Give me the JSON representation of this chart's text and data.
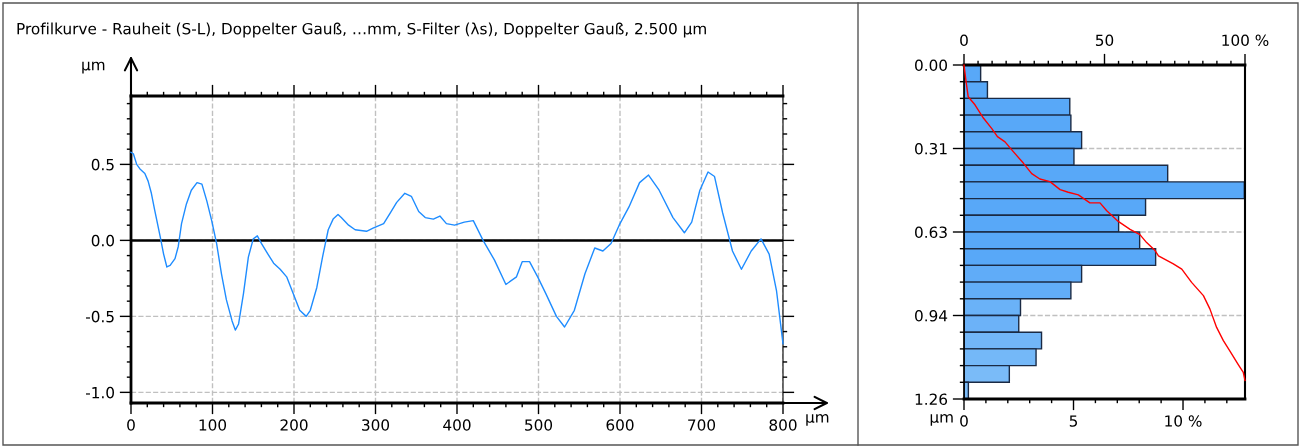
{
  "chart_data": [
    {
      "type": "line",
      "title": "Profilkurve - Rauheit (S-L), Doppelter Gauß, …mm, S-Filter (λs), Doppelter Gauß, 2.500 µm",
      "xlabel": "µm",
      "ylabel": "µm",
      "grid": true,
      "legend": false,
      "marker": "none",
      "line_style": "solid",
      "xlim": [
        0,
        800
      ],
      "ylim": [
        -1.07,
        0.95
      ],
      "xticks": [
        0,
        {
          "value": 20,
          "label": null
        },
        {
          "value": 40,
          "label": null
        },
        {
          "value": 60,
          "label": null
        },
        {
          "value": 80,
          "label": null
        },
        100,
        {
          "value": 120,
          "label": null
        },
        {
          "value": 140,
          "label": null
        },
        {
          "value": 160,
          "label": null
        },
        {
          "value": 180,
          "label": null
        },
        200,
        {
          "value": 220,
          "label": null
        },
        {
          "value": 240,
          "label": null
        },
        {
          "value": 260,
          "label": null
        },
        {
          "value": 280,
          "label": null
        },
        300,
        {
          "value": 320,
          "label": null
        },
        {
          "value": 340,
          "label": null
        },
        {
          "value": 360,
          "label": null
        },
        {
          "value": 380,
          "label": null
        },
        400,
        {
          "value": 420,
          "label": null
        },
        {
          "value": 440,
          "label": null
        },
        {
          "value": 460,
          "label": null
        },
        {
          "value": 480,
          "label": null
        },
        500,
        {
          "value": 520,
          "label": null
        },
        {
          "value": 540,
          "label": null
        },
        {
          "value": 560,
          "label": null
        },
        {
          "value": 580,
          "label": null
        },
        600,
        {
          "value": 620,
          "label": null
        },
        {
          "value": 640,
          "label": null
        },
        {
          "value": 660,
          "label": null
        },
        {
          "value": 680,
          "label": null
        },
        700,
        {
          "value": 720,
          "label": null
        },
        {
          "value": 740,
          "label": null
        },
        {
          "value": 760,
          "label": null
        },
        {
          "value": 780,
          "label": null
        },
        800
      ],
      "yticks": [
        {
          "value": -1.0,
          "label": "-1.0"
        },
        {
          "value": -0.9,
          "label": null
        },
        {
          "value": -0.8,
          "label": null
        },
        {
          "value": -0.7,
          "label": null
        },
        {
          "value": -0.6,
          "label": null
        },
        {
          "value": -0.5,
          "label": "-0.5"
        },
        {
          "value": -0.4,
          "label": null
        },
        {
          "value": -0.3,
          "label": null
        },
        {
          "value": -0.2,
          "label": null
        },
        {
          "value": -0.1,
          "label": null
        },
        {
          "value": 0,
          "label": "0.0"
        },
        {
          "value": 0.1,
          "label": null
        },
        {
          "value": 0.2,
          "label": null
        },
        {
          "value": 0.3,
          "label": null
        },
        {
          "value": 0.4,
          "label": null
        },
        {
          "value": 0.5,
          "label": "0.5"
        },
        {
          "value": 0.6,
          "label": null
        },
        {
          "value": 0.7,
          "label": null
        },
        {
          "value": 0.8,
          "label": null
        },
        {
          "value": 0.9,
          "label": null
        }
      ],
      "ref_lines": [
        {
          "axis": "y",
          "value": 0,
          "color": "#000000",
          "line_style": "solid"
        }
      ],
      "series": [
        {
          "color": "#1e8cff",
          "x": [
            0,
            2.9,
            7,
            11,
            17,
            21,
            25,
            29,
            36,
            40,
            44,
            48,
            54,
            58,
            62,
            68,
            74,
            81,
            87,
            93,
            99,
            105,
            111,
            117,
            124,
            128,
            132,
            138,
            144,
            150,
            155,
            160,
            168,
            175,
            183,
            191,
            199,
            207,
            215,
            220,
            228,
            235,
            242,
            248,
            254,
            258,
            267,
            275,
            289,
            297,
            310,
            318,
            326,
            336,
            344,
            353,
            361,
            371,
            379,
            387,
            397,
            409,
            420,
            432,
            446,
            460,
            473,
            480,
            489,
            499,
            509,
            522,
            532,
            544,
            557,
            569,
            579,
            589,
            599,
            611,
            624,
            635,
            648,
            665,
            679,
            688,
            698,
            708,
            716,
            726,
            738,
            749,
            761,
            773,
            783,
            792,
            800
          ],
          "values": [
            0.58,
            0.57,
            0.5,
            0.47,
            0.44,
            0.39,
            0.31,
            0.2,
            0.02,
            -0.09,
            -0.175,
            -0.165,
            -0.12,
            -0.04,
            0.11,
            0.24,
            0.33,
            0.38,
            0.37,
            0.26,
            0.13,
            -0.02,
            -0.22,
            -0.39,
            -0.53,
            -0.59,
            -0.55,
            -0.35,
            -0.11,
            0.01,
            0.03,
            -0.02,
            -0.09,
            -0.15,
            -0.19,
            -0.24,
            -0.35,
            -0.46,
            -0.5,
            -0.46,
            -0.31,
            -0.11,
            0.07,
            0.14,
            0.17,
            0.15,
            0.1,
            0.07,
            0.06,
            0.08,
            0.11,
            0.18,
            0.25,
            0.31,
            0.29,
            0.19,
            0.15,
            0.14,
            0.16,
            0.11,
            0.1,
            0.12,
            0.13,
            0.0,
            -0.13,
            -0.29,
            -0.24,
            -0.14,
            -0.14,
            -0.24,
            -0.35,
            -0.5,
            -0.57,
            -0.46,
            -0.22,
            -0.05,
            -0.07,
            -0.02,
            0.1,
            0.22,
            0.38,
            0.43,
            0.33,
            0.15,
            0.05,
            0.12,
            0.33,
            0.45,
            0.42,
            0.18,
            -0.07,
            -0.19,
            -0.07,
            0.01,
            -0.09,
            -0.33,
            -0.68
          ]
        }
      ]
    },
    {
      "type": "histogram",
      "orientation": "horizontal",
      "ylabel": "µm",
      "grid": "y",
      "legend": false,
      "bins": [
        0,
        0.063,
        0.126,
        0.189,
        0.252,
        0.315,
        0.378,
        0.441,
        0.504,
        0.567,
        0.63,
        0.693,
        0.756,
        0.819,
        0.882,
        0.945,
        1.008,
        1.071,
        1.134,
        1.197,
        1.26
      ],
      "values": [
        0.76,
        1.07,
        4.83,
        4.88,
        5.37,
        5.02,
        9.3,
        12.8,
        8.29,
        7.06,
        8.02,
        8.75,
        5.37,
        4.88,
        2.58,
        2.5,
        3.54,
        3.29,
        2.07,
        0.2
      ],
      "colors": [
        "#58a8f8",
        "#58a8f8",
        "#58a8f8",
        "#58a8f8",
        "#58a8f8",
        "#58a8f8",
        "#58a8f8",
        "#58a8f8",
        "#58a8f8",
        "#58a8f8",
        "#58a8f8",
        "#58a8f8",
        "#60acf8",
        "#62adf8",
        "#6ab2f8",
        "#6cb2f8",
        "#72b6f8",
        "#74b8f8",
        "#7abbf8",
        "#7cbcf8"
      ],
      "xlim": [
        0,
        12.83
      ],
      "xticks": [
        0,
        {
          "value": 1,
          "label": null
        },
        {
          "value": 2,
          "label": null
        },
        {
          "value": 3,
          "label": null
        },
        {
          "value": 4,
          "label": null
        },
        5,
        {
          "value": 6,
          "label": null
        },
        {
          "value": 7,
          "label": null
        },
        {
          "value": 8,
          "label": null
        },
        {
          "value": 9,
          "label": null
        },
        {
          "value": 10,
          "label": "10 %"
        },
        {
          "value": 11,
          "label": null
        },
        {
          "value": 12,
          "label": null
        }
      ],
      "x2lim": [
        0,
        100
      ],
      "x2ticks": [
        0,
        {
          "value": 5,
          "label": null
        },
        {
          "value": 10,
          "label": null
        },
        {
          "value": 15,
          "label": null
        },
        {
          "value": 20,
          "label": null
        },
        {
          "value": 25,
          "label": null
        },
        {
          "value": 30,
          "label": null
        },
        {
          "value": 35,
          "label": null
        },
        {
          "value": 40,
          "label": null
        },
        {
          "value": 45,
          "label": null
        },
        50,
        {
          "value": 55,
          "label": null
        },
        {
          "value": 60,
          "label": null
        },
        {
          "value": 65,
          "label": null
        },
        {
          "value": 70,
          "label": null
        },
        {
          "value": 75,
          "label": null
        },
        {
          "value": 80,
          "label": null
        },
        {
          "value": 85,
          "label": null
        },
        {
          "value": 90,
          "label": null
        },
        {
          "value": 95,
          "label": null
        },
        {
          "value": 100,
          "label": "100 %"
        }
      ],
      "ylim": [
        1.26,
        0
      ],
      "yticks": [
        {
          "value": 0,
          "label": "0.00"
        },
        {
          "value": 0.063,
          "label": null
        },
        {
          "value": 0.126,
          "label": null
        },
        {
          "value": 0.189,
          "label": null
        },
        {
          "value": 0.252,
          "label": null
        },
        {
          "value": 0.315,
          "label": "0.31"
        },
        {
          "value": 0.378,
          "label": null
        },
        {
          "value": 0.441,
          "label": null
        },
        {
          "value": 0.504,
          "label": null
        },
        {
          "value": 0.567,
          "label": null
        },
        {
          "value": 0.63,
          "label": "0.63"
        },
        {
          "value": 0.693,
          "label": null
        },
        {
          "value": 0.756,
          "label": null
        },
        {
          "value": 0.819,
          "label": null
        },
        {
          "value": 0.882,
          "label": null
        },
        {
          "value": 0.945,
          "label": "0.94"
        },
        {
          "value": 1.008,
          "label": null
        },
        {
          "value": 1.071,
          "label": null
        },
        {
          "value": 1.134,
          "label": null
        },
        {
          "value": 1.197,
          "label": null
        },
        {
          "value": 1.26,
          "label": "1.26"
        }
      ],
      "series": [
        {
          "type": "line",
          "axis": "x2",
          "color": "#ff0000",
          "x": [
            0,
            0.06,
            0.12,
            0.15,
            0.2,
            0.24,
            0.27,
            0.29,
            0.32,
            0.37,
            0.41,
            0.43,
            0.44,
            0.47,
            0.48,
            0.49,
            0.52,
            0.52,
            0.55,
            0.59,
            0.62,
            0.64,
            0.67,
            0.7,
            0.72,
            0.75,
            0.77,
            0.82,
            0.87,
            0.92,
            0.99,
            1.04,
            1.08,
            1.13,
            1.16,
            1.19
          ],
          "values": [
            0,
            0.7,
            1.5,
            3.9,
            6.9,
            9.9,
            11.9,
            14.6,
            17,
            21.1,
            24.1,
            27,
            30.6,
            34.2,
            37.1,
            40.7,
            44.8,
            48.4,
            50.8,
            54.9,
            59.1,
            62.6,
            65,
            68,
            69.2,
            74.5,
            77.5,
            81,
            85.2,
            87.5,
            89.9,
            92.3,
            94.7,
            97.6,
            99.4,
            100
          ]
        }
      ]
    }
  ]
}
